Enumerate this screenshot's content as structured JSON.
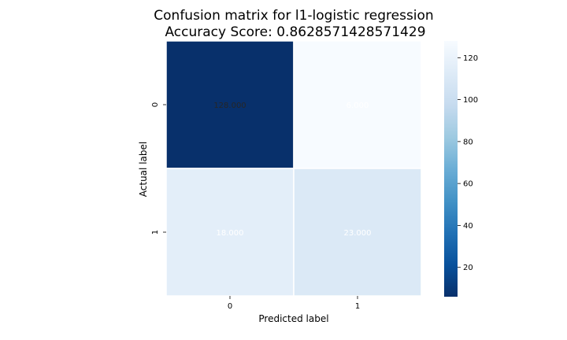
{
  "chart_data": {
    "type": "heatmap",
    "title_line1": "Confusion matrix for l1-logistic regression",
    "title_line2": "Accuracy Score: 0.8628571428571429",
    "xlabel": "Predicted label",
    "ylabel": "Actual label",
    "x_categories": [
      "0",
      "1"
    ],
    "y_categories": [
      "0",
      "1"
    ],
    "matrix": [
      [
        128,
        6
      ],
      [
        18,
        23
      ]
    ],
    "cell_labels": [
      [
        "128.000",
        "6.000"
      ],
      [
        "18.000",
        "23.000"
      ]
    ],
    "colormap": "Blues",
    "colorbar": {
      "range": [
        6,
        128
      ],
      "ticks": [
        20,
        40,
        60,
        80,
        100,
        120
      ]
    }
  }
}
